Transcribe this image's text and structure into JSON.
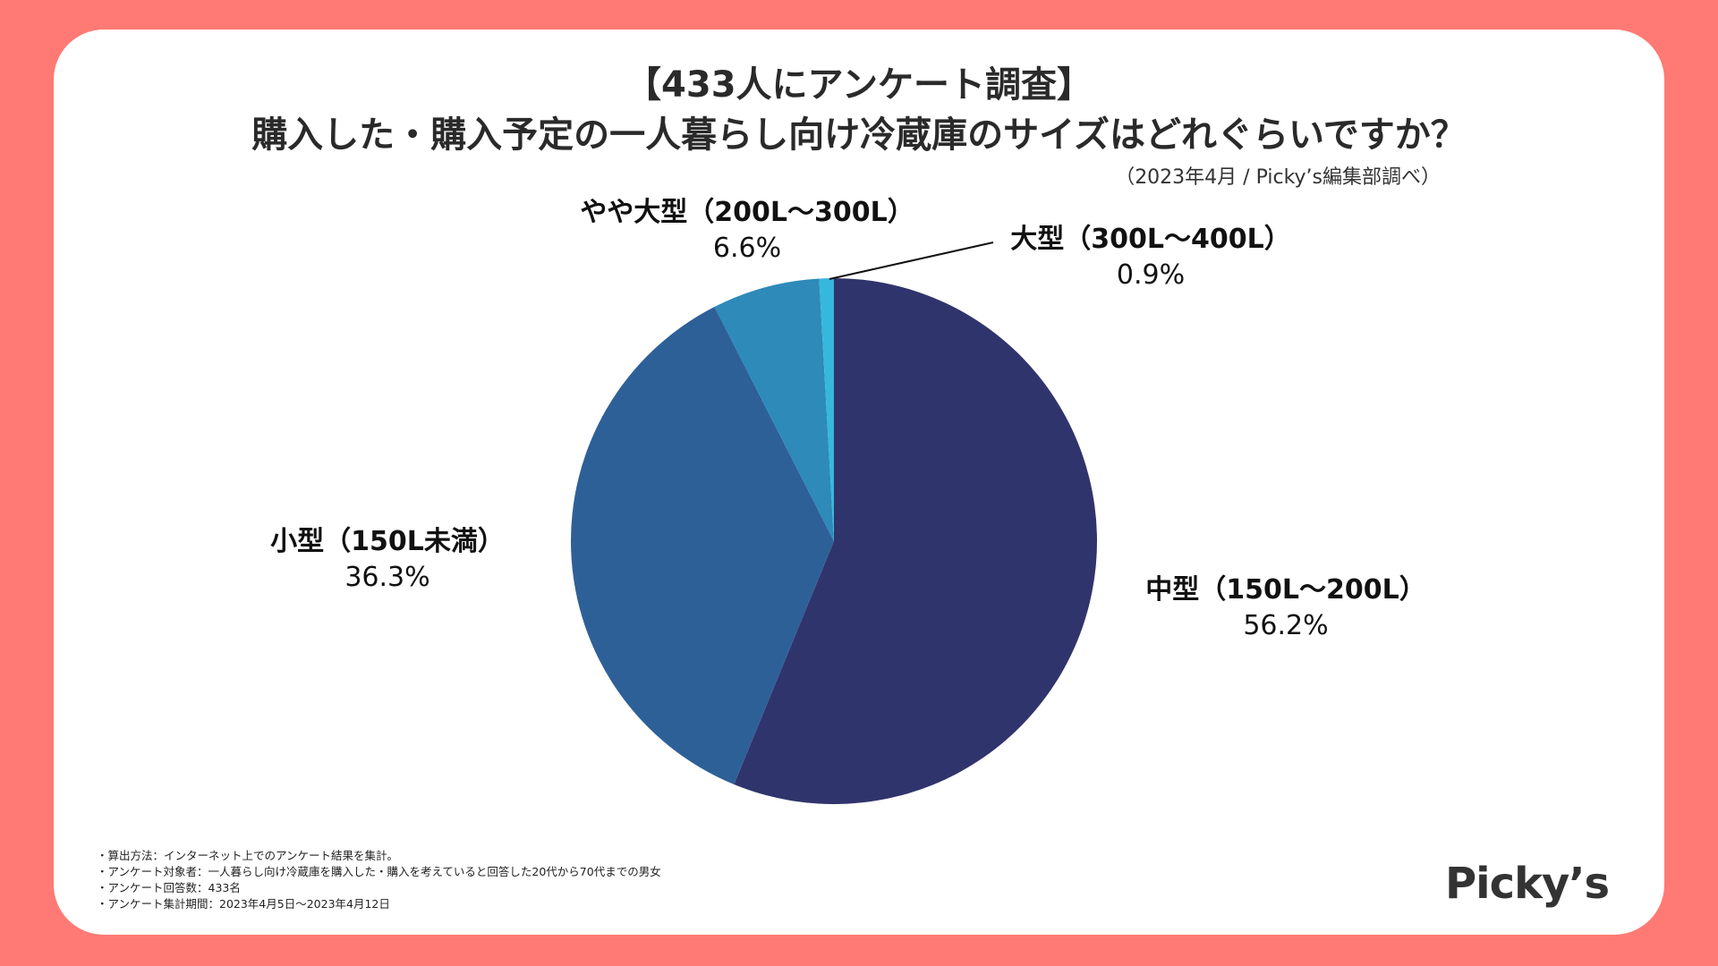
{
  "title": {
    "line1": "【433人にアンケート調査】",
    "line2": "購入した・購入予定の一人暮らし向け冷蔵庫のサイズはどれぐらいですか？"
  },
  "source_note": "（2023年4月 / Picky’s編集部調べ）",
  "chart_data": {
    "type": "pie",
    "title": "購入した・購入予定の一人暮らし向け冷蔵庫のサイズはどれぐらいですか？",
    "start": "12 o'clock, clockwise",
    "slices": [
      {
        "label": "中型（150L〜200L）",
        "value": 56.2,
        "display": "56.2%",
        "color": "#30346c"
      },
      {
        "label": "小型（150L未満）",
        "value": 36.3,
        "display": "36.3%",
        "color": "#2e6098"
      },
      {
        "label": "やや大型（200L〜300L）",
        "value": 6.6,
        "display": "6.6%",
        "color": "#2e8ab8"
      },
      {
        "label": "大型（300L〜400L）",
        "value": 0.9,
        "display": "0.9%",
        "color": "#36b8dc"
      }
    ]
  },
  "footnotes": [
    "・算出方法：インターネット上でのアンケート結果を集計。",
    "・アンケート対象者：一人暮らし向け冷蔵庫を購入した・購入を考えていると回答した20代から70代までの男女",
    "・アンケート回答数：433名",
    "・アンケート集計期間：2023年4月5日〜2023年4月12日"
  ],
  "brand": "Picky’s",
  "colors": {
    "background": "#ff7a74",
    "card": "#ffffff"
  }
}
